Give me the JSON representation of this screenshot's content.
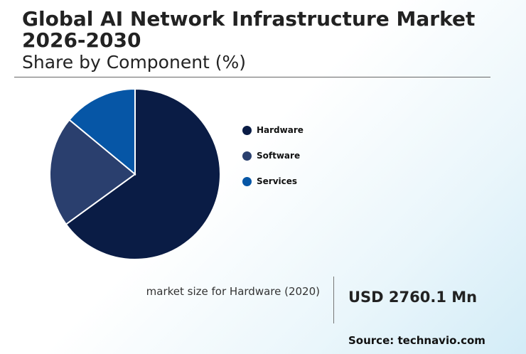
{
  "header": {
    "title": "Global AI Network Infrastructure Market 2026-2030",
    "subtitle": "Share by Component (%)"
  },
  "chart_data": {
    "type": "pie",
    "categories": [
      "Hardware",
      "Software",
      "Services"
    ],
    "values": [
      65,
      21,
      14
    ],
    "colors": [
      "#0a1c45",
      "#2a3f6e",
      "#0656a6"
    ],
    "legend_position": "right"
  },
  "metric": {
    "label": "market size for Hardware (2020)",
    "value": "USD 2760.1 Mn"
  },
  "footer": {
    "source": "Source: technavio.com"
  }
}
